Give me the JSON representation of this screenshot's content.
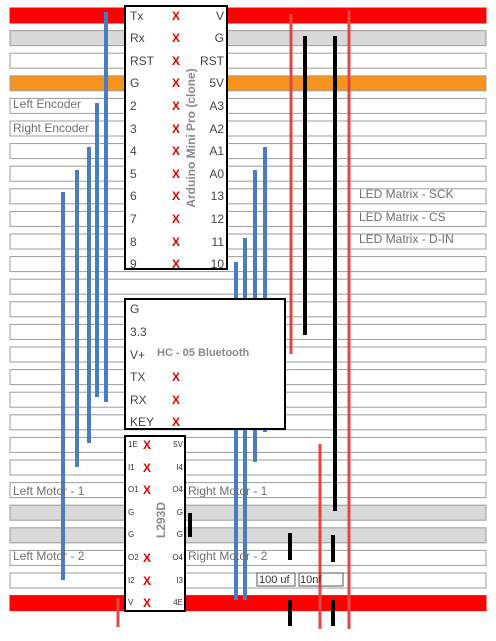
{
  "arduino": {
    "title": "Arduino Mini Pro (clone)",
    "left_pins": [
      "Tx",
      "Rx",
      "RST",
      "G",
      "2",
      "3",
      "4",
      "5",
      "6",
      "7",
      "8",
      "9"
    ],
    "right_pins": [
      "V",
      "G",
      "RST",
      "5V",
      "A3",
      "A2",
      "A1",
      "A0",
      "13",
      "12",
      "11",
      "10"
    ],
    "x_mark": "X"
  },
  "bluetooth": {
    "title": "HC - 05 Bluetooth",
    "pins": [
      "G",
      "3.3",
      "V+",
      "TX",
      "RX",
      "KEY"
    ]
  },
  "driver": {
    "title": "L293D",
    "left_pins": [
      "1E",
      "I1",
      "O1",
      "G",
      "G",
      "O2",
      "I2",
      "V"
    ],
    "right_pins": [
      "5V",
      "I4",
      "O4",
      "G",
      "G",
      "O4",
      "I3",
      "4E"
    ]
  },
  "labels": {
    "left_encoder": "Left Encoder",
    "right_encoder": "Right Encoder",
    "led_sck": "LED Matrix - SCK",
    "led_cs": "LED Matrix - CS",
    "led_din": "LED Matrix - D-IN",
    "left_motor_1": "Left Motor - 1",
    "right_motor_1": "Right Motor - 1",
    "left_motor_2": "Left Motor - 2",
    "right_motor_2": "Right Motor - 2"
  },
  "capacitors": {
    "c1": "100 uf",
    "c2": "10nf"
  },
  "colors": {
    "power_rail": "#ff0000",
    "ground_row": "#d9d9d9",
    "five_volt_row": "#f7941d",
    "signal_wire": "#4a7cc0",
    "power_wire": "#e04848",
    "ground_wire": "#000000"
  }
}
